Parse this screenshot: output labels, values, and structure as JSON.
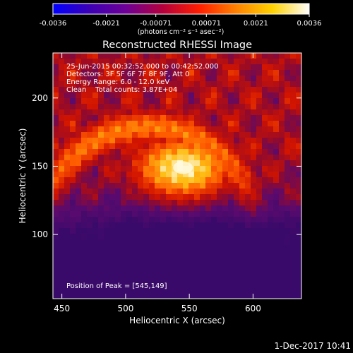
{
  "colorbar": {
    "tick_labels": [
      "-0.0036",
      "-0.0021",
      "-0.00071",
      "0.00071",
      "0.0021",
      "0.0036"
    ],
    "ticks": [
      -0.0036,
      -0.0021,
      -0.00071,
      0.00071,
      0.0021,
      0.0036
    ],
    "range": [
      -0.0036,
      0.0036
    ],
    "unit_label": "(photons cm⁻² s⁻¹ asec⁻²)",
    "colormap": [
      "#0000ff",
      "#3c00b4",
      "#6e0096",
      "#b4003c",
      "#ff1e00",
      "#ff8200",
      "#ffd200",
      "#ffffff"
    ]
  },
  "chart_data": {
    "type": "heatmap",
    "title": "Reconstructed RHESSI Image",
    "xlabel": "Heliocentric X (arcsec)",
    "ylabel": "Heliocentric Y (arcsec)",
    "xlim": [
      443,
      638
    ],
    "ylim": [
      53,
      233
    ],
    "xticks": [
      450,
      500,
      550,
      600
    ],
    "yticks": [
      100,
      150,
      200
    ],
    "peak": [
      545,
      149
    ],
    "annotations": [
      "25-Jun-2015 00:32:52.000 to 00:42:52.000",
      "Detectors: 3F 5F 6F 7F 8F 9F, Att 0",
      "Energy Range: 6.0 - 12.0 keV",
      "Clean    Total counts: 3.87E+04"
    ],
    "peak_label": "Position of Peak = [545,149]"
  },
  "footer": {
    "date": "1-Dec-2017 10:41"
  }
}
